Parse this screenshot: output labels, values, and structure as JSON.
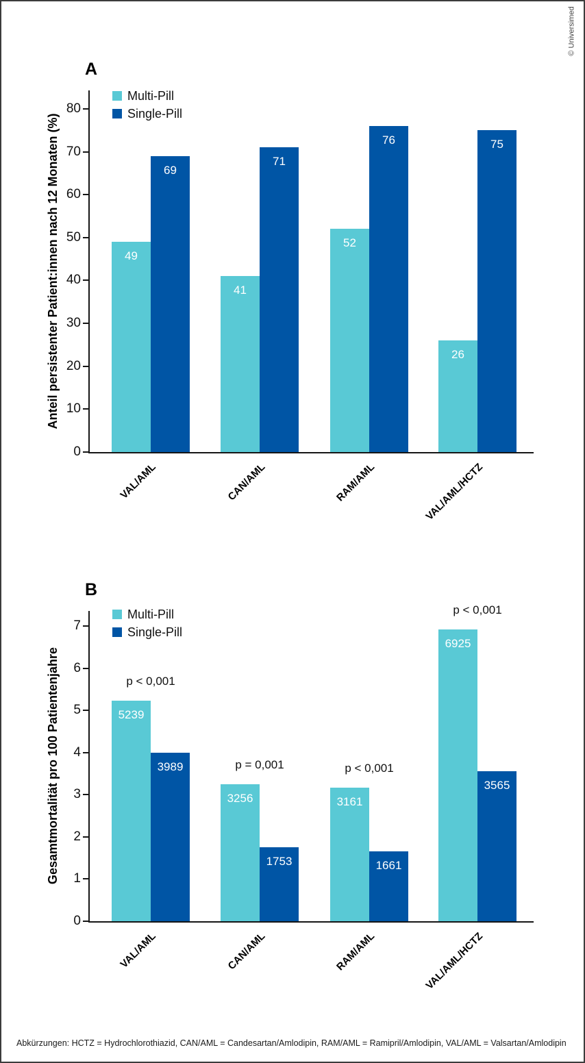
{
  "watermark": "© Universimed",
  "footer": "Abkürzungen: HCTZ = Hydrochlorothiazid, CAN/AML = Candesartan/Amlodipin, RAM/AML = Ramipril/Amlodipin, VAL/AML = Valsartan/Amlodipin",
  "legend": [
    {
      "label": "Multi-Pill",
      "color": "#59C9D5"
    },
    {
      "label": "Single-Pill",
      "color": "#0055A5"
    }
  ],
  "chart_data": [
    {
      "type": "bar",
      "panel": "A",
      "ylabel": "Anteil persistenter Patient:innen nach 12 Monaten (%)",
      "categories": [
        "VAL/AML",
        "CAN/AML",
        "RAM/AML",
        "VAL/AML/HCTZ"
      ],
      "series": [
        {
          "name": "Multi-Pill",
          "color": "#59C9D5",
          "values": [
            49,
            41,
            52,
            26
          ],
          "labels": [
            "49",
            "41",
            "52",
            "26"
          ]
        },
        {
          "name": "Single-Pill",
          "color": "#0055A5",
          "values": [
            69,
            71,
            76,
            75
          ],
          "labels": [
            "69",
            "71",
            "76",
            "75"
          ]
        }
      ],
      "yticks": [
        0,
        10,
        20,
        30,
        40,
        50,
        60,
        70,
        80
      ],
      "ylim": [
        0,
        84.3
      ],
      "grid": false,
      "legend_position": "top-left"
    },
    {
      "type": "bar",
      "panel": "B",
      "ylabel": "Gesamtmortalität pro 100 Patientenjahre",
      "categories": [
        "VAL/AML",
        "CAN/AML",
        "RAM/AML",
        "VAL/AML/HCTZ"
      ],
      "series": [
        {
          "name": "Multi-Pill",
          "color": "#59C9D5",
          "values": [
            5.239,
            3.256,
            3.161,
            6.925
          ],
          "labels": [
            "5239",
            "3256",
            "3161",
            "6925"
          ]
        },
        {
          "name": "Single-Pill",
          "color": "#0055A5",
          "values": [
            3.989,
            1.753,
            1.661,
            3.565
          ],
          "labels": [
            "3989",
            "1753",
            "1661",
            "3565"
          ]
        }
      ],
      "p_values": [
        "p < 0,001",
        "p = 0,001",
        "p < 0,001",
        "p < 0,001"
      ],
      "yticks": [
        0,
        1,
        2,
        3,
        4,
        5,
        6,
        7
      ],
      "ylim": [
        0,
        7.36
      ],
      "grid": false,
      "legend_position": "top-left"
    }
  ]
}
